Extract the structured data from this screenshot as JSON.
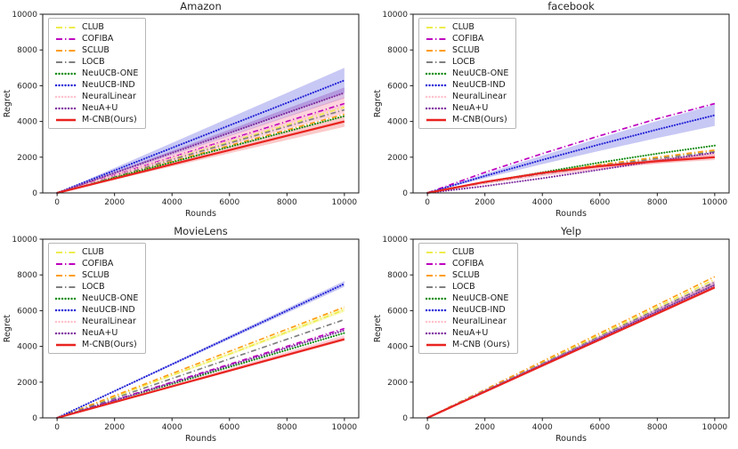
{
  "figure": {
    "background": "#ffffff"
  },
  "chart_data": [
    {
      "type": "line",
      "title": "Amazon",
      "xlabel": "Rounds",
      "ylabel": "Regret",
      "xlim": [
        0,
        10000
      ],
      "ylim": [
        0,
        10000
      ],
      "xticks": [
        0,
        2000,
        4000,
        6000,
        8000,
        10000
      ],
      "yticks": [
        0,
        2000,
        4000,
        6000,
        8000,
        10000
      ],
      "grid": false,
      "legend_position": "upper left",
      "x": [
        0,
        2000,
        4000,
        6000,
        8000,
        10000
      ],
      "series": [
        {
          "name": "CLUB",
          "color": "#EDED4C",
          "style": "dashdot",
          "values": [
            0,
            950,
            1900,
            2850,
            3800,
            4800
          ]
        },
        {
          "name": "COFIBA",
          "color": "#BE00BE",
          "style": "dashdot",
          "values": [
            0,
            1000,
            2000,
            3000,
            4000,
            5000
          ]
        },
        {
          "name": "SCLUB",
          "color": "#FF9D14",
          "style": "dashdot",
          "values": [
            0,
            880,
            1760,
            2650,
            3520,
            4400
          ]
        },
        {
          "name": "LOCB",
          "color": "#7F7F7F",
          "style": "dashdot",
          "values": [
            0,
            930,
            1860,
            2790,
            3720,
            4650
          ]
        },
        {
          "name": "NeuUCB-ONE",
          "color": "#108A10",
          "style": "dotted",
          "values": [
            0,
            860,
            1720,
            2580,
            3440,
            4300
          ]
        },
        {
          "name": "NeuUCB-IND",
          "color": "#2222D6",
          "style": "dotted",
          "values": [
            0,
            1260,
            2520,
            3780,
            5040,
            6300
          ],
          "band": 700,
          "band_color": "#4A4ADF",
          "band_opacity": 0.3
        },
        {
          "name": "NeuralLinear",
          "color": "#FFC0CB",
          "style": "dotted",
          "values": [
            0,
            980,
            1960,
            2940,
            3920,
            4900
          ],
          "band": 450,
          "band_color": "#FF9FB4",
          "band_opacity": 0.45
        },
        {
          "name": "NeuA+U",
          "color": "#7F2FA0",
          "style": "dotted",
          "values": [
            0,
            1120,
            2240,
            3360,
            4480,
            5600
          ],
          "band": 300,
          "band_color": "#8833AA",
          "band_opacity": 0.3
        },
        {
          "name": "M-CNB(Ours)",
          "color": "#E8231F",
          "style": "solid",
          "values": [
            0,
            800,
            1600,
            2400,
            3200,
            4000
          ],
          "band": 300,
          "band_color": "#F25050",
          "band_opacity": 0.3
        }
      ]
    },
    {
      "type": "line",
      "title": "facebook",
      "xlabel": "Rounds",
      "ylabel": "Regret",
      "xlim": [
        0,
        10000
      ],
      "ylim": [
        0,
        10000
      ],
      "xticks": [
        0,
        2000,
        4000,
        6000,
        8000,
        10000
      ],
      "yticks": [
        0,
        2000,
        4000,
        6000,
        8000,
        10000
      ],
      "grid": false,
      "legend_position": "upper left",
      "x": [
        0,
        2000,
        4000,
        6000,
        8000,
        10000
      ],
      "series": [
        {
          "name": "CLUB",
          "color": "#EDED4C",
          "style": "dashdot",
          "values": [
            0,
            570,
            1080,
            1540,
            1960,
            2350
          ]
        },
        {
          "name": "COFIBA",
          "color": "#BE00BE",
          "style": "dashdot",
          "values": [
            0,
            1150,
            2200,
            3200,
            4150,
            5000
          ]
        },
        {
          "name": "SCLUB",
          "color": "#FF9D14",
          "style": "dashdot",
          "values": [
            0,
            590,
            1110,
            1580,
            2000,
            2400
          ]
        },
        {
          "name": "LOCB",
          "color": "#7F7F7F",
          "style": "dashdot",
          "values": [
            0,
            560,
            1060,
            1510,
            1920,
            2300
          ]
        },
        {
          "name": "NeuUCB-ONE",
          "color": "#108A10",
          "style": "dotted",
          "values": [
            0,
            600,
            1150,
            1700,
            2200,
            2650
          ]
        },
        {
          "name": "NeuUCB-IND",
          "color": "#2222D6",
          "style": "dotted",
          "values": [
            0,
            950,
            1850,
            2720,
            3550,
            4350
          ],
          "band": 600,
          "band_color": "#4A4ADF",
          "band_opacity": 0.3
        },
        {
          "name": "NeuralLinear",
          "color": "#FFC0CB",
          "style": "dotted",
          "values": [
            0,
            540,
            1000,
            1400,
            1760,
            2100
          ],
          "band": 150,
          "band_color": "#FF9FB4",
          "band_opacity": 0.45
        },
        {
          "name": "NeuA+U",
          "color": "#7F2FA0",
          "style": "dotted",
          "values": [
            0,
            380,
            820,
            1300,
            1800,
            2250
          ]
        },
        {
          "name": "M-CNB(Ours)",
          "color": "#E8231F",
          "style": "solid",
          "values": [
            0,
            620,
            1120,
            1500,
            1780,
            2000
          ],
          "band": 160,
          "band_color": "#F25050",
          "band_opacity": 0.3
        }
      ]
    },
    {
      "type": "line",
      "title": "MovieLens",
      "xlabel": "Rounds",
      "ylabel": "Regret",
      "xlim": [
        0,
        10000
      ],
      "ylim": [
        0,
        10000
      ],
      "xticks": [
        0,
        2000,
        4000,
        6000,
        8000,
        10000
      ],
      "yticks": [
        0,
        2000,
        4000,
        6000,
        8000,
        10000
      ],
      "grid": false,
      "legend_position": "upper left",
      "x": [
        0,
        2000,
        4000,
        6000,
        8000,
        10000
      ],
      "series": [
        {
          "name": "CLUB",
          "color": "#EDED4C",
          "style": "dashdot",
          "values": [
            0,
            1190,
            2380,
            3570,
            4800,
            6050
          ],
          "band": 120,
          "band_color": "#EDED4C",
          "band_opacity": 0.35
        },
        {
          "name": "COFIBA",
          "color": "#BE00BE",
          "style": "dashdot",
          "values": [
            0,
            1000,
            2000,
            3000,
            4000,
            5000
          ]
        },
        {
          "name": "SCLUB",
          "color": "#FF9D14",
          "style": "dashdot",
          "values": [
            0,
            1240,
            2480,
            3720,
            4960,
            6200
          ]
        },
        {
          "name": "LOCB",
          "color": "#7F7F7F",
          "style": "dashdot",
          "values": [
            0,
            1100,
            2200,
            3300,
            4400,
            5500
          ]
        },
        {
          "name": "NeuUCB-ONE",
          "color": "#108A10",
          "style": "dotted",
          "values": [
            0,
            950,
            1900,
            2850,
            3800,
            4750
          ]
        },
        {
          "name": "NeuUCB-IND",
          "color": "#2222D6",
          "style": "dotted",
          "values": [
            0,
            1500,
            3000,
            4500,
            6000,
            7500
          ],
          "band": 160,
          "band_color": "#4A4ADF",
          "band_opacity": 0.3
        },
        {
          "name": "NeuralLinear",
          "color": "#FFC0CB",
          "style": "dotted",
          "values": [
            0,
            900,
            1800,
            2700,
            3600,
            4500
          ],
          "band": 130,
          "band_color": "#FF9FB4",
          "band_opacity": 0.4
        },
        {
          "name": "NeuA+U",
          "color": "#7F2FA0",
          "style": "dotted",
          "values": [
            0,
            980,
            1960,
            2940,
            3920,
            4900
          ]
        },
        {
          "name": "M-CNB(Ours)",
          "color": "#E8231F",
          "style": "solid",
          "values": [
            0,
            880,
            1760,
            2640,
            3520,
            4400
          ],
          "band": 90,
          "band_color": "#F25050",
          "band_opacity": 0.3
        }
      ]
    },
    {
      "type": "line",
      "title": "Yelp",
      "xlabel": "Rounds",
      "ylabel": "Regret",
      "xlim": [
        0,
        10000
      ],
      "ylim": [
        0,
        10000
      ],
      "xticks": [
        0,
        2000,
        4000,
        6000,
        8000,
        10000
      ],
      "yticks": [
        0,
        2000,
        4000,
        6000,
        8000,
        10000
      ],
      "grid": false,
      "legend_position": "upper left",
      "x": [
        0,
        2000,
        4000,
        6000,
        8000,
        10000
      ],
      "series": [
        {
          "name": "CLUB",
          "color": "#EDED4C",
          "style": "dashdot",
          "values": [
            0,
            1550,
            3100,
            4650,
            6200,
            7750
          ]
        },
        {
          "name": "COFIBA",
          "color": "#BE00BE",
          "style": "dashdot",
          "values": [
            0,
            1510,
            3020,
            4530,
            6040,
            7550
          ]
        },
        {
          "name": "SCLUB",
          "color": "#FF9D14",
          "style": "dashdot",
          "values": [
            0,
            1580,
            3160,
            4740,
            6320,
            7900
          ]
        },
        {
          "name": "LOCB",
          "color": "#7F7F7F",
          "style": "dashdot",
          "values": [
            0,
            1520,
            3040,
            4560,
            6080,
            7600
          ]
        },
        {
          "name": "NeuUCB-ONE",
          "color": "#108A10",
          "style": "dotted",
          "values": [
            0,
            1490,
            2980,
            4470,
            5960,
            7450
          ]
        },
        {
          "name": "NeuUCB-IND",
          "color": "#2222D6",
          "style": "dotted",
          "values": [
            0,
            1500,
            3000,
            4500,
            6000,
            7500
          ],
          "band": 130,
          "band_color": "#4A4ADF",
          "band_opacity": 0.25
        },
        {
          "name": "NeuralLinear",
          "color": "#FFC0CB",
          "style": "dotted",
          "values": [
            0,
            1500,
            3000,
            4500,
            6000,
            7500
          ],
          "band": 200,
          "band_color": "#FFB6C6",
          "band_opacity": 0.5
        },
        {
          "name": "NeuA+U",
          "color": "#7F2FA0",
          "style": "dotted",
          "values": [
            0,
            1488,
            2976,
            4464,
            5952,
            7440
          ],
          "band": 100,
          "band_color": "#8833AA",
          "band_opacity": 0.25
        },
        {
          "name": "M-CNB (Ours)",
          "color": "#E8231F",
          "style": "solid",
          "values": [
            0,
            1460,
            2920,
            4380,
            5840,
            7300
          ],
          "band": 90,
          "band_color": "#F25050",
          "band_opacity": 0.3
        }
      ]
    }
  ]
}
